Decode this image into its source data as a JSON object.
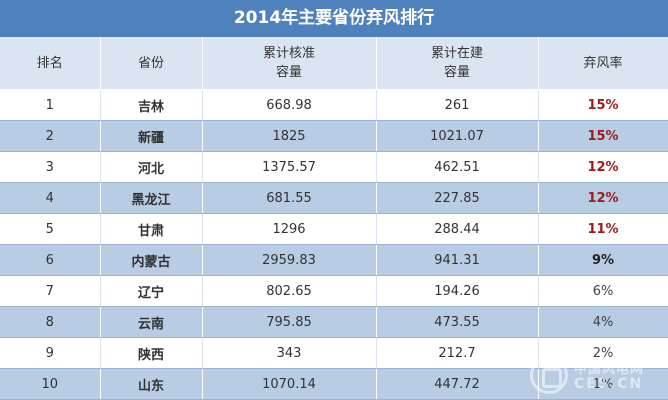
{
  "title": "2014年主要省份弃风排行",
  "headers": {
    "rank": "排名",
    "province": "省份",
    "approved_line1": "累计核准",
    "approved_line2": "容量",
    "building_line1": "累计在建",
    "building_line2": "容量",
    "curtail_rate": "弃风率"
  },
  "rows": [
    {
      "rank": "1",
      "province": "吉林",
      "approved": "668.98",
      "building": "261",
      "rate": "15%"
    },
    {
      "rank": "2",
      "province": "新疆",
      "approved": "1825",
      "building": "1021.07",
      "rate": "15%"
    },
    {
      "rank": "3",
      "province": "河北",
      "approved": "1375.57",
      "building": "462.51",
      "rate": "12%"
    },
    {
      "rank": "4",
      "province": "黑龙江",
      "approved": "681.55",
      "building": "227.85",
      "rate": "12%"
    },
    {
      "rank": "5",
      "province": "甘肃",
      "approved": "1296",
      "building": "288.44",
      "rate": "11%"
    },
    {
      "rank": "6",
      "province": "内蒙古",
      "approved": "2959.83",
      "building": "941.31",
      "rate": "9%"
    },
    {
      "rank": "7",
      "province": "辽宁",
      "approved": "802.65",
      "building": "194.26",
      "rate": "6%"
    },
    {
      "rank": "8",
      "province": "云南",
      "approved": "795.85",
      "building": "473.55",
      "rate": "4%"
    },
    {
      "rank": "9",
      "province": "陕西",
      "approved": "343",
      "building": "212.7",
      "rate": "2%"
    },
    {
      "rank": "10",
      "province": "山东",
      "approved": "1070.14",
      "building": "447.72",
      "rate": "1%"
    }
  ],
  "watermark": {
    "line1": "中国风电网",
    "line2": "CES.CN"
  },
  "colors": {
    "title_bg": "#4f81bd",
    "header_bg": "#dbe5f1",
    "row_alt_bg": "#b8cce4",
    "rate_high": "#9e1b1b"
  }
}
